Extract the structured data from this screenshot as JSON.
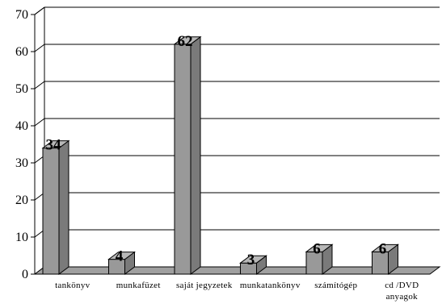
{
  "chart_data": {
    "type": "bar",
    "title": "",
    "xlabel": "",
    "ylabel": "",
    "categories": [
      "tankönyv",
      "munkafüzet",
      "saját jegyzetek",
      "munkatankönyv",
      "számítógép",
      "cd /DVD anyagok"
    ],
    "values": [
      34,
      4,
      62,
      3,
      6,
      6
    ],
    "data_labels": [
      "34",
      "4",
      "62",
      "3",
      "6",
      "6"
    ],
    "ylim": [
      0,
      70
    ],
    "yticks": [
      "0",
      "10",
      "20",
      "30",
      "40",
      "50",
      "60",
      "70"
    ],
    "grid": true,
    "legend": "none",
    "bar_color": "#999999",
    "bar_side_color": "#7a7a7a",
    "bar_top_color": "#b8b8b8",
    "floor_color": "#a0a0a0"
  }
}
